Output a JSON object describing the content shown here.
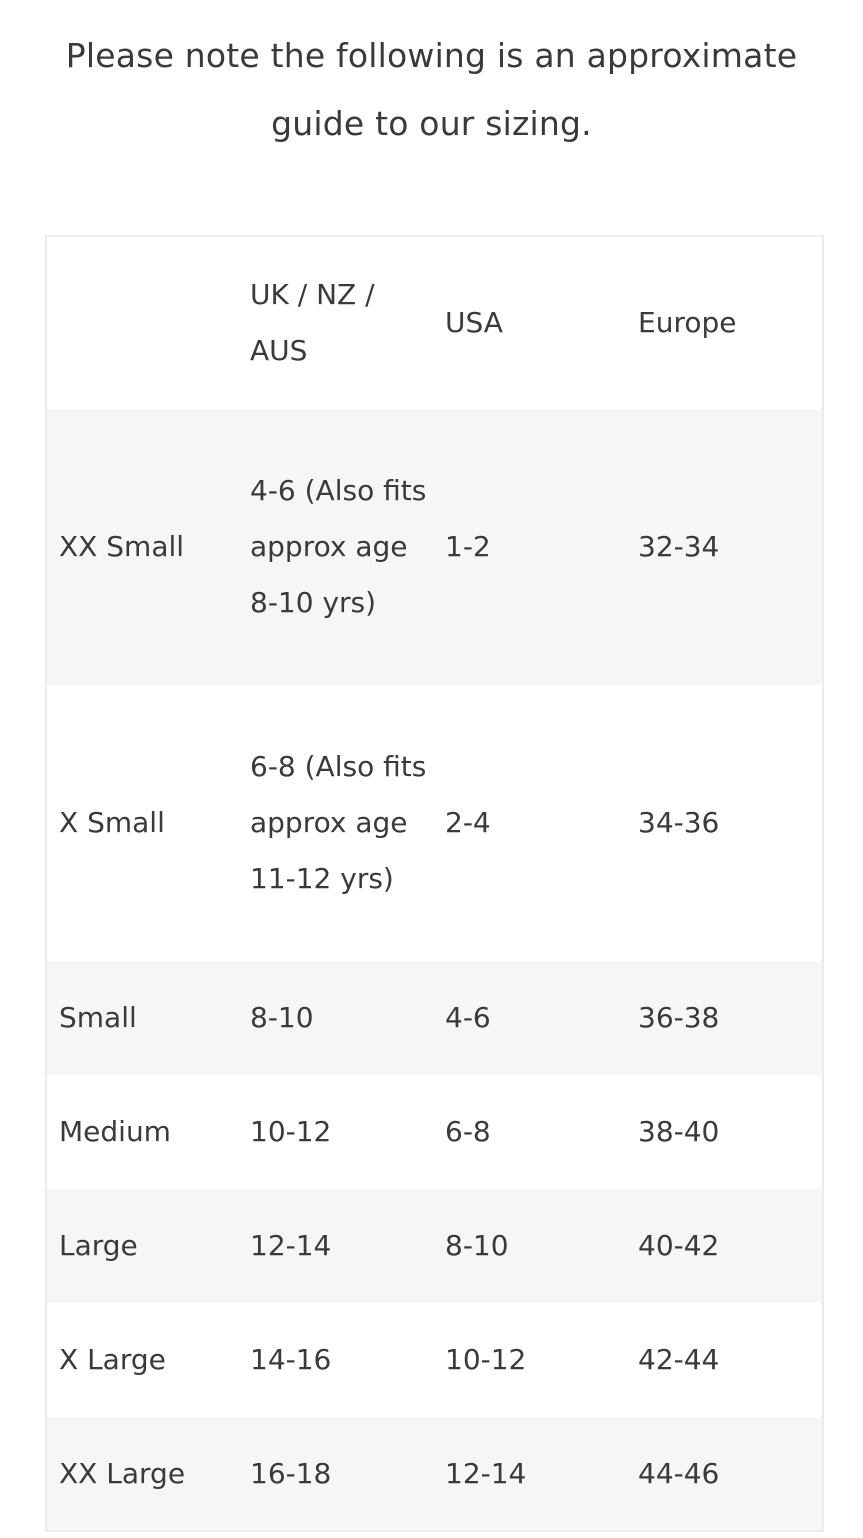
{
  "intro": {
    "line1": "Please note the following is an approximate",
    "line2": "guide to our sizing."
  },
  "size_table": {
    "headers": [
      "",
      "UK / NZ / AUS",
      "USA",
      "Europe"
    ],
    "rows": [
      [
        "XX Small",
        "4-6 (Also fits approx age 8-10 yrs)",
        "1-2",
        "32-34"
      ],
      [
        "X Small",
        "6-8 (Also fits approx age 11-12 yrs)",
        "2-4",
        "34-36"
      ],
      [
        "Small",
        "8-10",
        "4-6",
        "36-38"
      ],
      [
        "Medium",
        "10-12",
        "6-8",
        "38-40"
      ],
      [
        "Large",
        "12-14",
        "8-10",
        "40-42"
      ],
      [
        "X Large",
        "14-16",
        "10-12",
        "42-44"
      ],
      [
        "XX Large",
        "16-18",
        "12-14",
        "44-46"
      ]
    ]
  },
  "colors": {
    "stripe": "#f6f6f6",
    "border": "#ececec",
    "text": "#3a3a3a"
  }
}
